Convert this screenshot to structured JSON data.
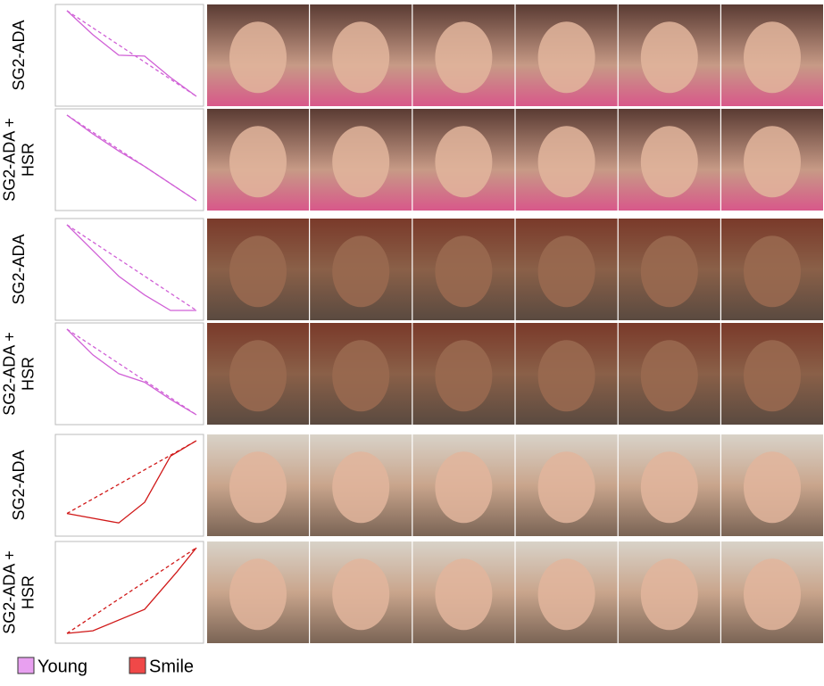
{
  "xlim": [
    0,
    1
  ],
  "ylim": [
    0,
    1
  ],
  "rows": [
    {
      "label": [
        "SG2-ADA"
      ],
      "color": "#d060d6",
      "solid": {
        "x": [
          0,
          0.2,
          0.4,
          0.6,
          0.8,
          1
        ],
        "y": [
          1,
          0.72,
          0.48,
          0.47,
          0.22,
          0
        ]
      },
      "dashed": {
        "x": [
          0,
          1
        ],
        "y": [
          1,
          0
        ]
      }
    },
    {
      "label": [
        "SG2-ADA +",
        "HSR"
      ],
      "color": "#d060d6",
      "solid": {
        "x": [
          0,
          0.2,
          0.4,
          0.6,
          0.8,
          1
        ],
        "y": [
          1,
          0.78,
          0.58,
          0.4,
          0.2,
          0
        ]
      },
      "dashed": {
        "x": [
          0,
          1
        ],
        "y": [
          1,
          0
        ]
      }
    },
    {
      "label": [
        "SG2-ADA"
      ],
      "color": "#d060d6",
      "solid": {
        "x": [
          0,
          0.2,
          0.4,
          0.6,
          0.8,
          1
        ],
        "y": [
          1,
          0.7,
          0.4,
          0.18,
          0,
          0
        ]
      },
      "dashed": {
        "x": [
          0,
          1
        ],
        "y": [
          1,
          0
        ]
      }
    },
    {
      "label": [
        "SG2-ADA +",
        "HSR"
      ],
      "color": "#d060d6",
      "solid": {
        "x": [
          0,
          0.2,
          0.4,
          0.6,
          0.8,
          1
        ],
        "y": [
          1,
          0.7,
          0.48,
          0.38,
          0.18,
          0
        ]
      },
      "dashed": {
        "x": [
          0,
          1
        ],
        "y": [
          1,
          0
        ]
      }
    },
    {
      "label": [
        "SG2-ADA"
      ],
      "color": "#d01818",
      "solid": {
        "x": [
          0,
          0.4,
          0.6,
          0.8,
          1
        ],
        "y": [
          0.15,
          0.04,
          0.28,
          0.82,
          1
        ]
      },
      "dashed": {
        "x": [
          0,
          1
        ],
        "y": [
          0.15,
          1
        ]
      }
    },
    {
      "label": [
        "SG2-ADA +",
        "HSR"
      ],
      "color": "#d01818",
      "solid": {
        "x": [
          0,
          0.2,
          0.6,
          0.85,
          1
        ],
        "y": [
          0,
          0.03,
          0.28,
          0.72,
          1
        ]
      },
      "dashed": {
        "x": [
          0,
          1
        ],
        "y": [
          0,
          1
        ]
      }
    }
  ],
  "legend": [
    {
      "name": "Young",
      "color": "#e8a0f0"
    },
    {
      "name": "Smile",
      "color": "#f04848"
    }
  ]
}
